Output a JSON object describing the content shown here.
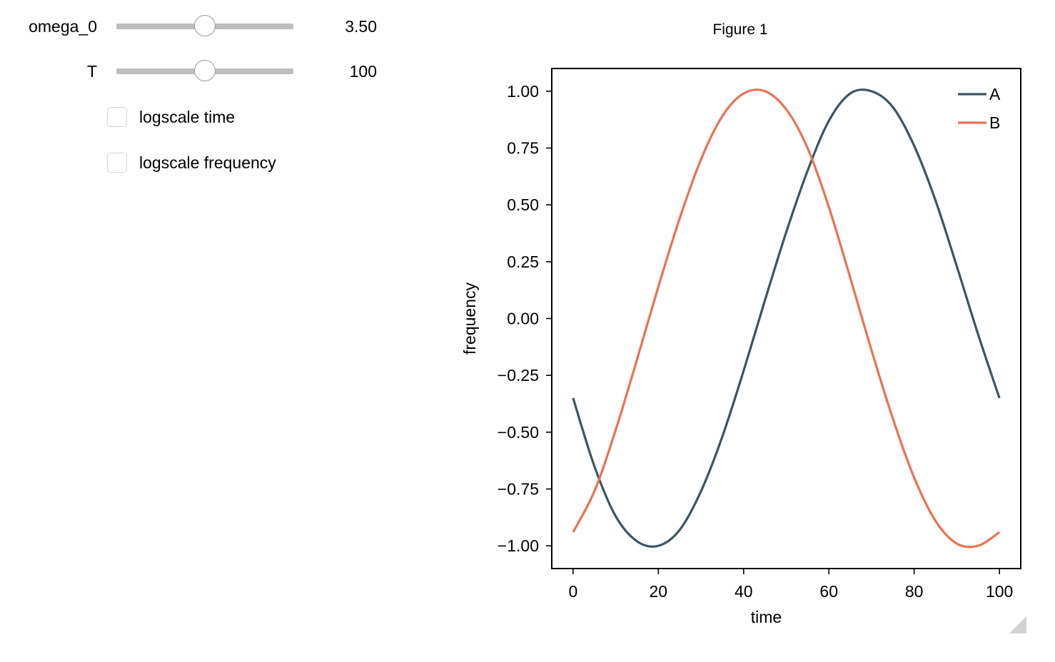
{
  "controls": {
    "sliders": [
      {
        "label": "omega_0",
        "readout": "3.50",
        "value": 3.5,
        "min": 0,
        "max": 7
      },
      {
        "label": "T",
        "readout": "100",
        "value": 100,
        "min": 0,
        "max": 200
      }
    ],
    "checkboxes": [
      {
        "label": "logscale time",
        "checked": false
      },
      {
        "label": "logscale frequency",
        "checked": false
      }
    ]
  },
  "figure": {
    "title": "Figure 1"
  },
  "chart_data": {
    "type": "line",
    "xlabel": "time",
    "ylabel": "frequency",
    "xlim": [
      -5,
      105
    ],
    "ylim": [
      -1.1,
      1.1
    ],
    "xticks": [
      0,
      20,
      40,
      60,
      80,
      100
    ],
    "xtick_labels": [
      "0",
      "20",
      "40",
      "60",
      "80",
      "100"
    ],
    "yticks": [
      1.0,
      0.75,
      0.5,
      0.25,
      0.0,
      -0.25,
      -0.5,
      -0.75,
      -1.0
    ],
    "ytick_labels": [
      "1.00",
      "0.75",
      "0.50",
      "0.25",
      "0.00",
      "−0.25",
      "−0.50",
      "−0.75",
      "−1.00"
    ],
    "legend_position": "top-right",
    "grid": false,
    "series": [
      {
        "name": "A",
        "color": "#3b5564",
        "x": [
          0,
          5,
          10,
          15,
          20,
          25,
          30,
          35,
          40,
          45,
          50,
          55,
          60,
          65,
          70,
          75,
          80,
          85,
          90,
          95,
          100
        ],
        "y": [
          -0.35,
          -0.65,
          -0.87,
          -0.98,
          -1.0,
          -0.93,
          -0.76,
          -0.52,
          -0.23,
          0.08,
          0.38,
          0.65,
          0.87,
          0.99,
          1.0,
          0.93,
          0.76,
          0.52,
          0.23,
          -0.07,
          -0.35
        ]
      },
      {
        "name": "B",
        "color": "#ec7053",
        "x": [
          0,
          5,
          10,
          15,
          20,
          25,
          30,
          35,
          40,
          45,
          50,
          55,
          60,
          65,
          70,
          75,
          80,
          85,
          90,
          95,
          100
        ],
        "y": [
          -0.94,
          -0.76,
          -0.49,
          -0.18,
          0.14,
          0.44,
          0.7,
          0.89,
          0.99,
          1.0,
          0.92,
          0.75,
          0.49,
          0.18,
          -0.14,
          -0.44,
          -0.7,
          -0.89,
          -0.99,
          -1.0,
          -0.94
        ]
      }
    ]
  }
}
